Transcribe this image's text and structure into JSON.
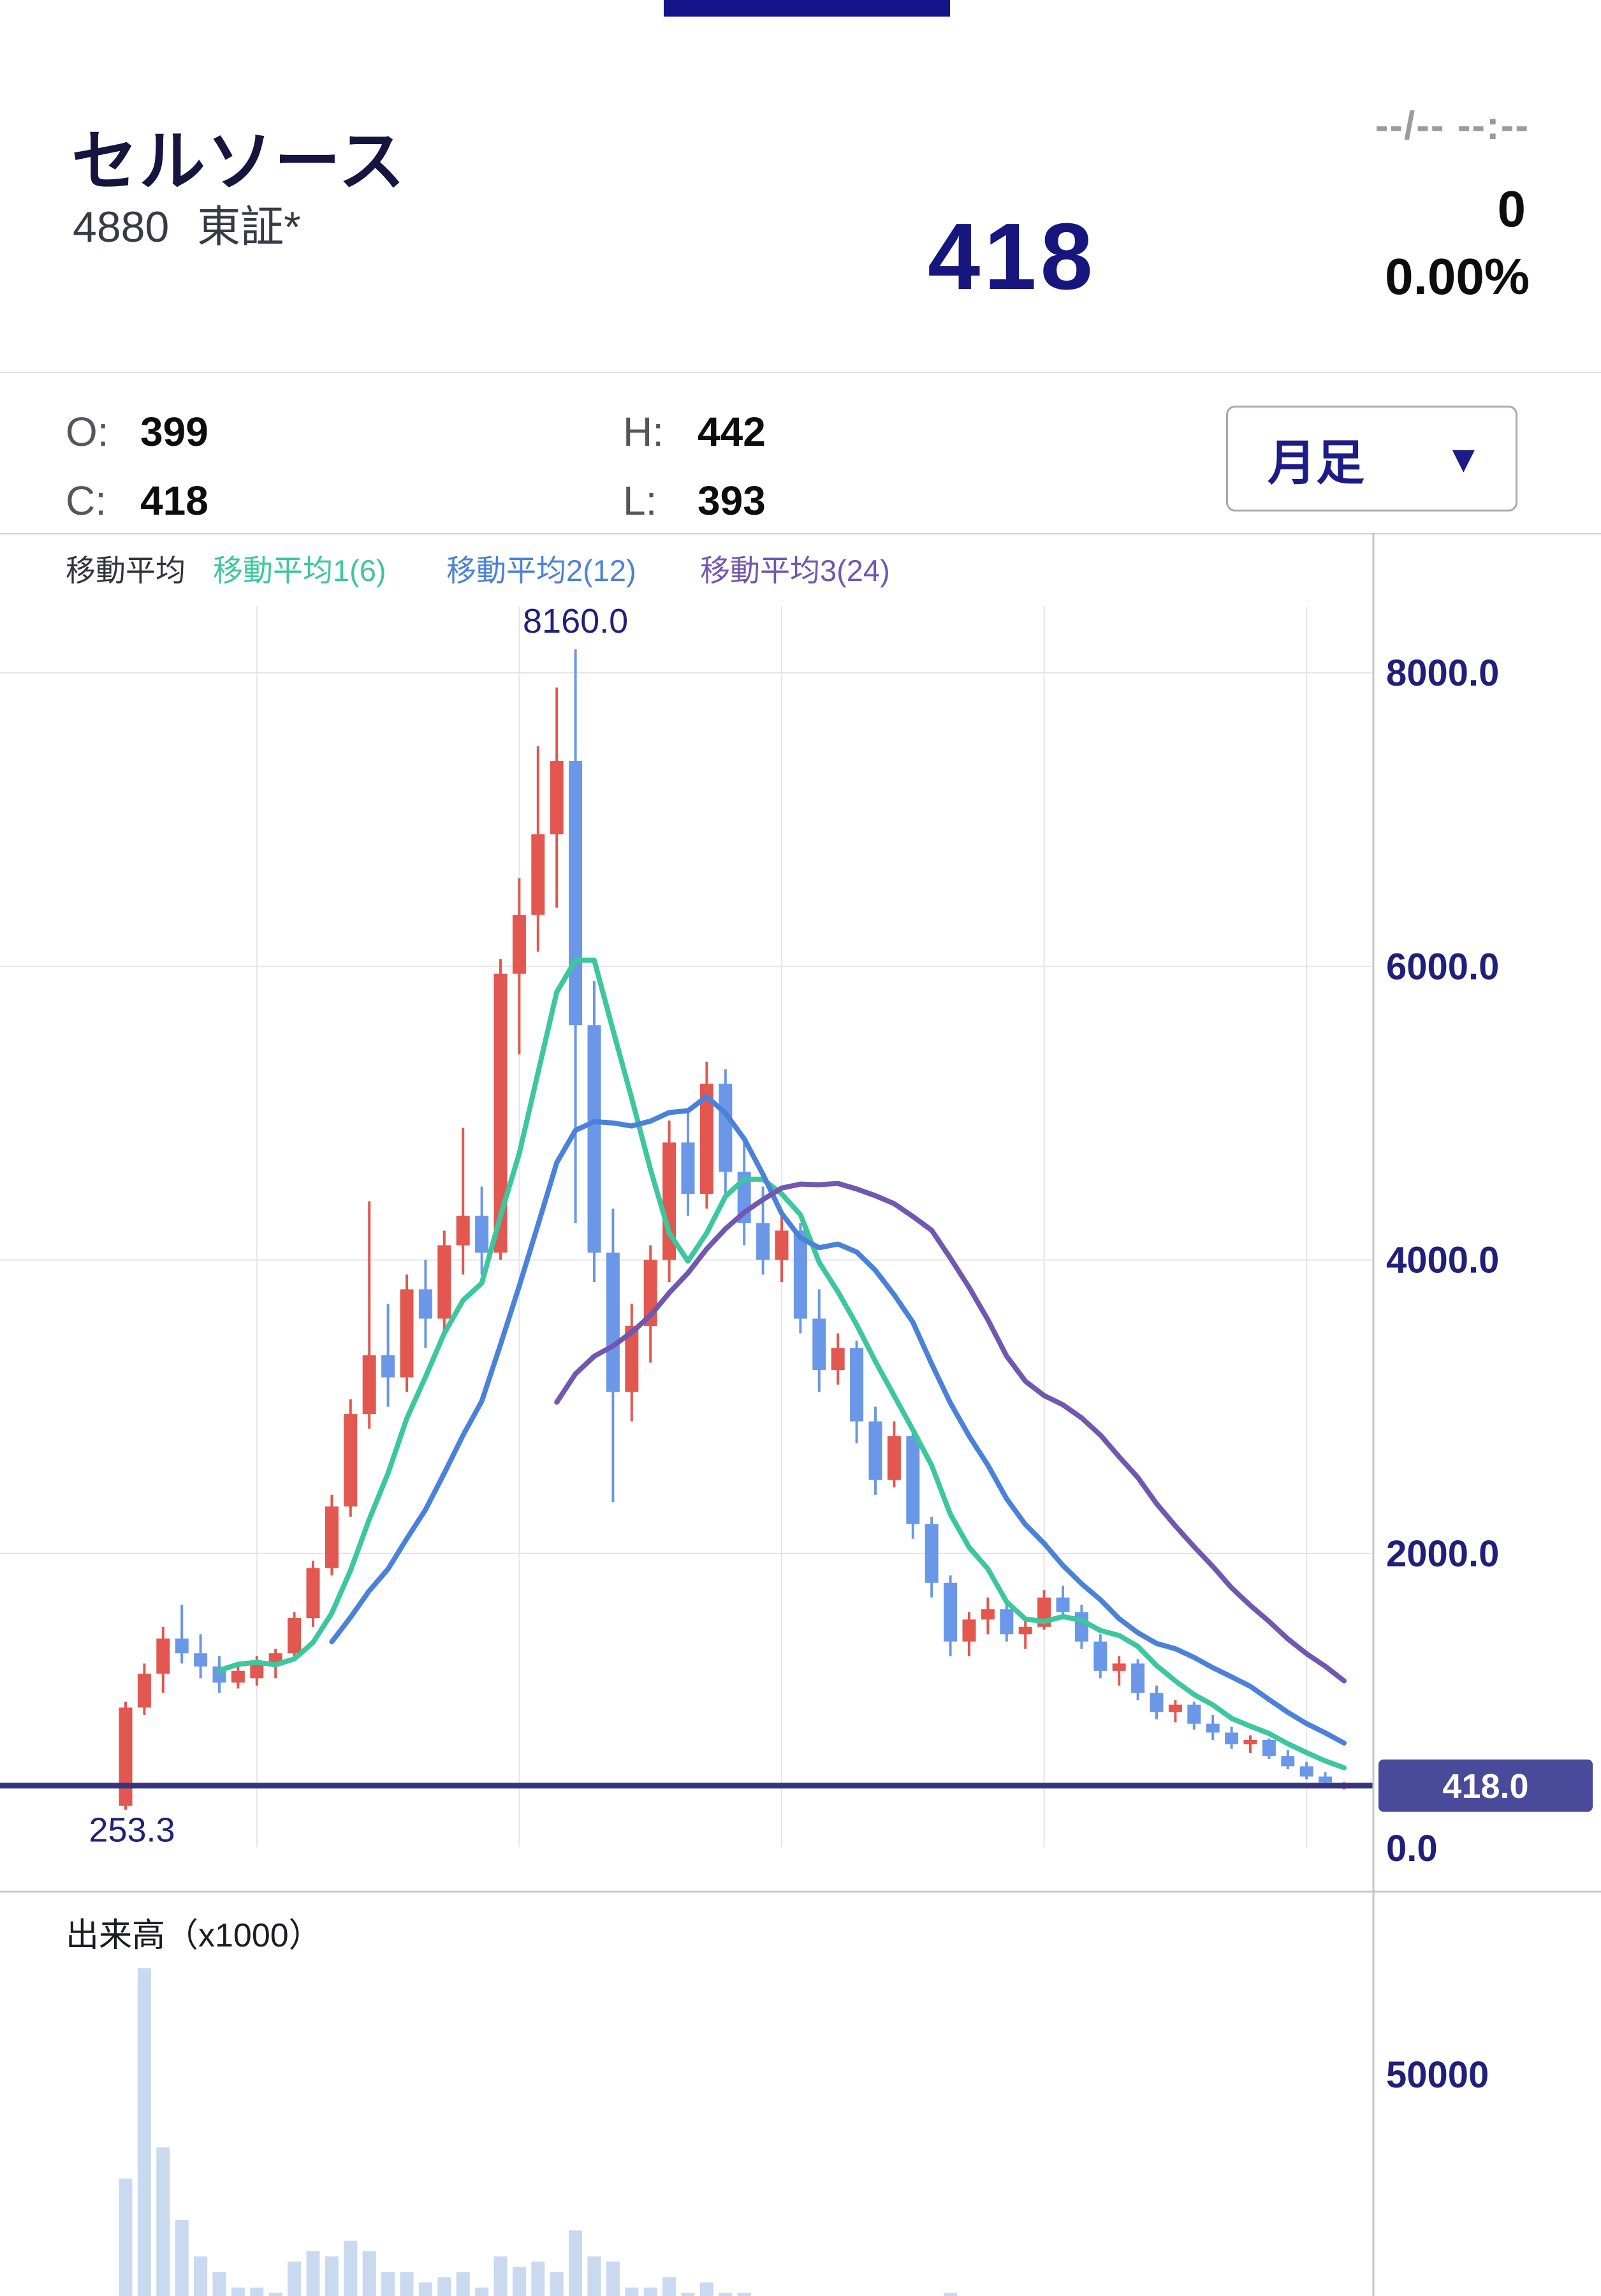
{
  "header": {
    "stock_name": "セルソース",
    "stock_code": "4880",
    "exchange": "東証*",
    "datetime": "--/-- --:--",
    "price": "418",
    "change": "0",
    "change_percent": "0.00%"
  },
  "quote": {
    "open_label": "O:",
    "open": "399",
    "high_label": "H:",
    "high": "442",
    "close_label": "C:",
    "close": "418",
    "low_label": "L:",
    "low": "393",
    "timeframe_label": "月足",
    "dropdown_icon": "▼"
  },
  "legend": {
    "title": "移動平均",
    "ma1_label": "移動平均1(6)",
    "ma2_label": "移動平均2(12)",
    "ma3_label": "移動平均3(24)"
  },
  "colors": {
    "navy": "#1c1c87",
    "axis_text": "#20207a",
    "grid": "#e4e4ea",
    "separator": "#c6c6cc",
    "up_candle": "#e2574f",
    "down_candle": "#6b97e8",
    "volume_bar": "#c9d9f0",
    "ma1": "#3cc79c",
    "ma2": "#4b82d9",
    "ma3": "#7157b0",
    "price_line": "#35357f",
    "price_tag_bg": "#4a4a9a",
    "price_tag_text": "#ffffff"
  },
  "chart_data": {
    "type": "candlestick",
    "title": "セルソース 4880 月足",
    "timeframe": "月足",
    "ylim": [
      0,
      8600
    ],
    "y_ticks": [
      8000,
      6000,
      4000,
      2000
    ],
    "y_tick_labels": [
      "8000.0",
      "6000.0",
      "4000.0",
      "2000.0"
    ],
    "zero_label": "0.0",
    "high_annotation": {
      "value": 8160.0,
      "label": "8160.0",
      "candle_index": 24
    },
    "low_annotation": {
      "value": 253.3,
      "label": "253.3",
      "candle_index": 0
    },
    "current_price": {
      "value": 418.0,
      "label": "418.0"
    },
    "ma_periods": [
      6,
      12,
      24
    ],
    "x_gridline_indices": [
      7,
      21,
      35,
      49,
      63
    ],
    "volume": {
      "title": "出来高（x1000）",
      "tick": 50000,
      "tick_label": "50000"
    },
    "candle_format": [
      "open",
      "high",
      "low",
      "close",
      "volume_x1000"
    ],
    "candles": [
      [
        280,
        990,
        253.3,
        950,
        30000
      ],
      [
        950,
        1250,
        900,
        1180,
        70500
      ],
      [
        1180,
        1500,
        1050,
        1420,
        36000
      ],
      [
        1420,
        1650,
        1250,
        1320,
        22000
      ],
      [
        1320,
        1450,
        1150,
        1230,
        15000
      ],
      [
        1230,
        1300,
        1050,
        1120,
        12000
      ],
      [
        1120,
        1250,
        1080,
        1200,
        9000
      ],
      [
        1150,
        1300,
        1100,
        1260,
        9000
      ],
      [
        1260,
        1350,
        1150,
        1320,
        8000
      ],
      [
        1320,
        1600,
        1280,
        1560,
        14000
      ],
      [
        1560,
        1950,
        1500,
        1900,
        16000
      ],
      [
        1900,
        2400,
        1850,
        2320,
        15000
      ],
      [
        2320,
        3050,
        2250,
        2950,
        18000
      ],
      [
        2950,
        4400,
        2850,
        3350,
        16000
      ],
      [
        3350,
        3700,
        3000,
        3200,
        12000
      ],
      [
        3200,
        3900,
        3100,
        3800,
        12000
      ],
      [
        3800,
        4000,
        3400,
        3600,
        10000
      ],
      [
        3600,
        4200,
        3500,
        4100,
        11000
      ],
      [
        4100,
        4900,
        3900,
        4300,
        12000
      ],
      [
        4300,
        4500,
        3900,
        4050,
        9000
      ],
      [
        4050,
        6050,
        4000,
        5950,
        15000
      ],
      [
        5950,
        6600,
        5400,
        6350,
        13000
      ],
      [
        6350,
        7500,
        6100,
        6900,
        14000
      ],
      [
        6900,
        7900,
        6400,
        7400,
        12000
      ],
      [
        7400,
        8160,
        4250,
        5600,
        20000
      ],
      [
        5600,
        5900,
        3850,
        4050,
        15000
      ],
      [
        4050,
        4350,
        2350,
        3100,
        14000
      ],
      [
        3100,
        3700,
        2900,
        3550,
        9000
      ],
      [
        3550,
        4100,
        3300,
        4000,
        9000
      ],
      [
        4000,
        4950,
        3850,
        4800,
        11000
      ],
      [
        4800,
        5000,
        4300,
        4450,
        8000
      ],
      [
        4450,
        5350,
        4350,
        5200,
        10000
      ],
      [
        5200,
        5300,
        4450,
        4600,
        8000
      ],
      [
        4600,
        4800,
        4100,
        4250,
        8000
      ],
      [
        4250,
        4500,
        3900,
        4000,
        7000
      ],
      [
        4000,
        4300,
        3850,
        4200,
        6000
      ],
      [
        4200,
        4250,
        3500,
        3600,
        7000
      ],
      [
        3600,
        3800,
        3100,
        3250,
        7000
      ],
      [
        3250,
        3500,
        3150,
        3400,
        6000
      ],
      [
        3400,
        3450,
        2750,
        2900,
        7000
      ],
      [
        2900,
        3000,
        2400,
        2500,
        7000
      ],
      [
        2500,
        2900,
        2450,
        2800,
        6000
      ],
      [
        2800,
        2850,
        2100,
        2200,
        7000
      ],
      [
        2200,
        2250,
        1700,
        1800,
        7000
      ],
      [
        1800,
        1850,
        1300,
        1400,
        8000
      ],
      [
        1400,
        1600,
        1300,
        1550,
        5000
      ],
      [
        1550,
        1700,
        1450,
        1620,
        4000
      ],
      [
        1620,
        1680,
        1400,
        1450,
        4000
      ],
      [
        1450,
        1550,
        1350,
        1500,
        4000
      ],
      [
        1500,
        1750,
        1480,
        1700,
        5000
      ],
      [
        1700,
        1780,
        1550,
        1600,
        4000
      ],
      [
        1600,
        1650,
        1350,
        1400,
        4000
      ],
      [
        1400,
        1450,
        1150,
        1200,
        4000
      ],
      [
        1200,
        1300,
        1100,
        1250,
        3000
      ],
      [
        1250,
        1280,
        1000,
        1050,
        4000
      ],
      [
        1050,
        1100,
        870,
        920,
        4000
      ],
      [
        920,
        1000,
        850,
        970,
        3000
      ],
      [
        970,
        990,
        800,
        840,
        3000
      ],
      [
        840,
        900,
        730,
        780,
        3000
      ],
      [
        780,
        820,
        670,
        700,
        3000
      ],
      [
        700,
        760,
        640,
        730,
        3000
      ],
      [
        730,
        740,
        600,
        620,
        3000
      ],
      [
        620,
        660,
        530,
        550,
        4000
      ],
      [
        550,
        580,
        460,
        480,
        3000
      ],
      [
        480,
        510,
        420,
        440,
        3000
      ],
      [
        399,
        442,
        393,
        418,
        2500
      ]
    ]
  }
}
